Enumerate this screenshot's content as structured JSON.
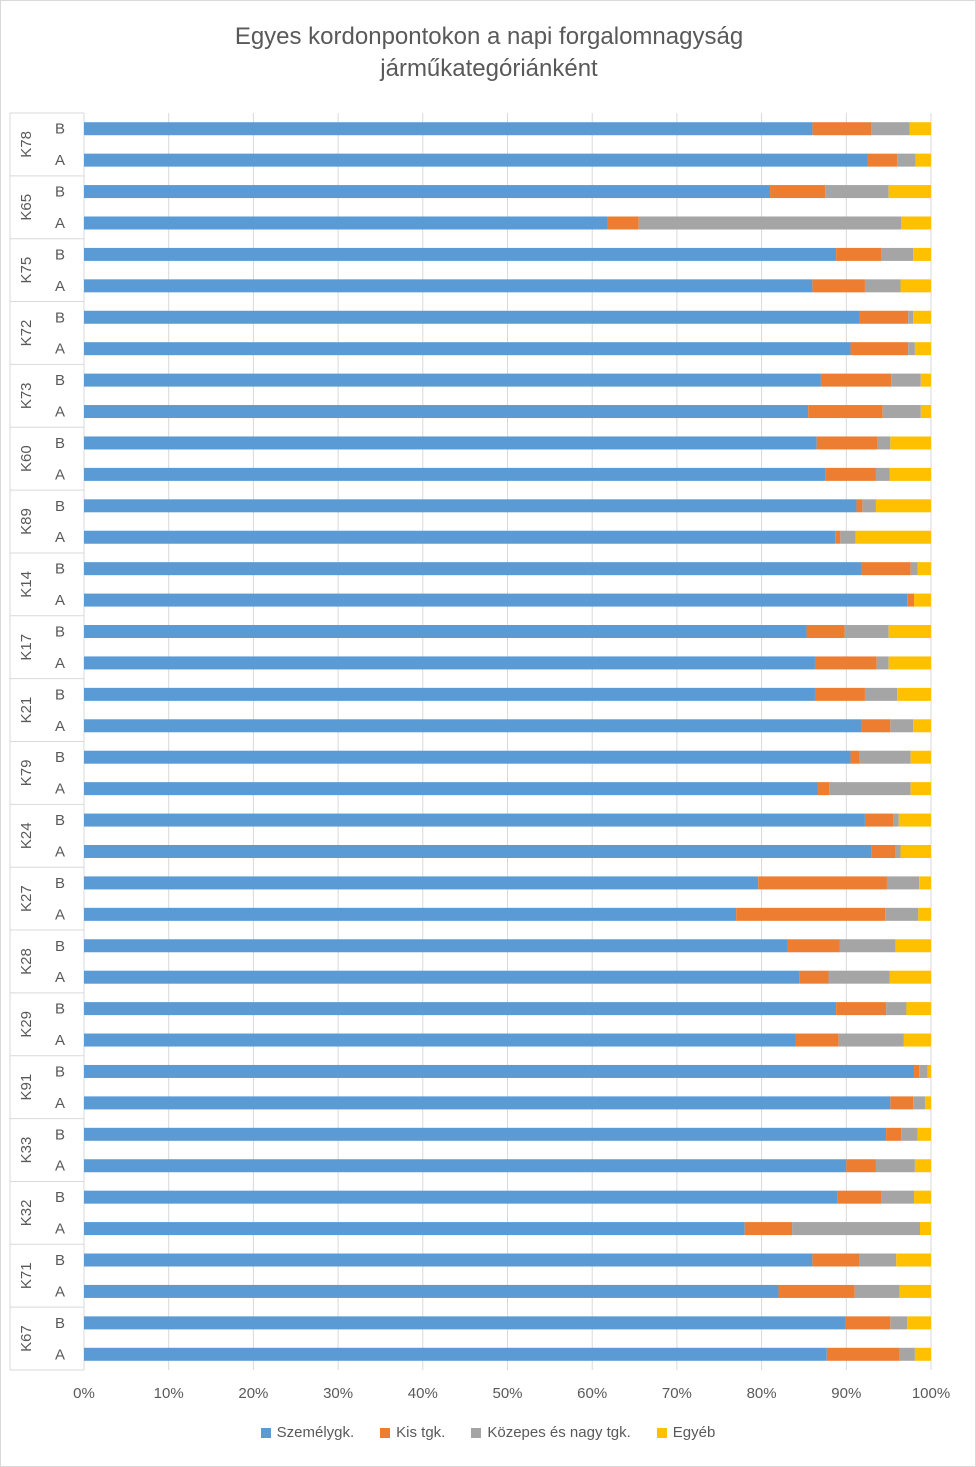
{
  "chart_data": {
    "type": "bar",
    "orientation": "horizontal",
    "stacked": "percent",
    "title": "Egyes kordonpontokon  a napi forgalomnagyság járműkategóriánként",
    "title_lines": [
      "Egyes kordonpontokon  a napi forgalomnagyság",
      "járműkategóriánként"
    ],
    "xlim": [
      0,
      100
    ],
    "x_ticks": [
      "0%",
      "10%",
      "20%",
      "30%",
      "40%",
      "50%",
      "60%",
      "70%",
      "80%",
      "90%",
      "100%"
    ],
    "grid": "vertical",
    "legend_position": "bottom",
    "colors": [
      "#5b9bd5",
      "#ed7d31",
      "#a5a5a5",
      "#ffc000"
    ],
    "series_names": [
      "Személygk.",
      "Kis tgk.",
      "Közepes és nagy tgk.",
      "Egyéb"
    ],
    "groups": [
      {
        "name": "K78",
        "bars": [
          {
            "label": "B",
            "values": [
              86.0,
              7.0,
              4.5,
              2.5
            ]
          },
          {
            "label": "A",
            "values": [
              92.5,
              3.5,
              2.2,
              1.8
            ]
          }
        ]
      },
      {
        "name": "K65",
        "bars": [
          {
            "label": "B",
            "values": [
              81.0,
              6.5,
              7.5,
              5.0
            ]
          },
          {
            "label": "A",
            "values": [
              61.8,
              3.7,
              31.0,
              3.5
            ]
          }
        ]
      },
      {
        "name": "K75",
        "bars": [
          {
            "label": "B",
            "values": [
              88.8,
              5.3,
              3.8,
              2.1
            ]
          },
          {
            "label": "A",
            "values": [
              86.0,
              6.2,
              4.2,
              3.6
            ]
          }
        ]
      },
      {
        "name": "K72",
        "bars": [
          {
            "label": "B",
            "values": [
              91.5,
              5.8,
              0.6,
              2.1
            ]
          },
          {
            "label": "A",
            "values": [
              90.5,
              6.8,
              0.8,
              1.9
            ]
          }
        ]
      },
      {
        "name": "K73",
        "bars": [
          {
            "label": "B",
            "values": [
              87.0,
              8.3,
              3.5,
              1.2
            ]
          },
          {
            "label": "A",
            "values": [
              85.5,
              8.8,
              4.5,
              1.2
            ]
          }
        ]
      },
      {
        "name": "K60",
        "bars": [
          {
            "label": "B",
            "values": [
              86.5,
              7.2,
              1.5,
              4.8
            ]
          },
          {
            "label": "A",
            "values": [
              87.5,
              6.0,
              1.6,
              4.9
            ]
          }
        ]
      },
      {
        "name": "K89",
        "bars": [
          {
            "label": "B",
            "values": [
              91.2,
              0.7,
              1.6,
              6.5
            ]
          },
          {
            "label": "A",
            "values": [
              88.7,
              0.6,
              1.8,
              8.9
            ]
          }
        ]
      },
      {
        "name": "K14",
        "bars": [
          {
            "label": "B",
            "values": [
              91.8,
              5.8,
              0.8,
              1.6
            ]
          },
          {
            "label": "A",
            "values": [
              97.2,
              0.8,
              0.0,
              2.0
            ]
          }
        ]
      },
      {
        "name": "K17",
        "bars": [
          {
            "label": "B",
            "values": [
              85.3,
              4.5,
              5.2,
              5.0
            ]
          },
          {
            "label": "A",
            "values": [
              86.3,
              7.3,
              1.4,
              5.0
            ]
          }
        ]
      },
      {
        "name": "K21",
        "bars": [
          {
            "label": "B",
            "values": [
              86.3,
              5.9,
              3.8,
              4.0
            ]
          },
          {
            "label": "A",
            "values": [
              91.8,
              3.4,
              2.7,
              2.1
            ]
          }
        ]
      },
      {
        "name": "K79",
        "bars": [
          {
            "label": "B",
            "values": [
              90.5,
              1.0,
              6.1,
              2.4
            ]
          },
          {
            "label": "A",
            "values": [
              86.6,
              1.4,
              9.6,
              2.4
            ]
          }
        ]
      },
      {
        "name": "K24",
        "bars": [
          {
            "label": "B",
            "values": [
              92.2,
              3.4,
              0.6,
              3.8
            ]
          },
          {
            "label": "A",
            "values": [
              93.0,
              2.8,
              0.6,
              3.6
            ]
          }
        ]
      },
      {
        "name": "K27",
        "bars": [
          {
            "label": "B",
            "values": [
              79.6,
              15.2,
              3.8,
              1.4
            ]
          },
          {
            "label": "A",
            "values": [
              77.0,
              17.6,
              3.9,
              1.5
            ]
          }
        ]
      },
      {
        "name": "K28",
        "bars": [
          {
            "label": "B",
            "values": [
              83.0,
              6.2,
              6.6,
              4.2
            ]
          },
          {
            "label": "A",
            "values": [
              84.5,
              3.4,
              7.2,
              4.9
            ]
          }
        ]
      },
      {
        "name": "K29",
        "bars": [
          {
            "label": "B",
            "values": [
              88.8,
              5.9,
              2.4,
              2.9
            ]
          },
          {
            "label": "A",
            "values": [
              84.0,
              5.1,
              7.7,
              3.2
            ]
          }
        ]
      },
      {
        "name": "K91",
        "bars": [
          {
            "label": "B",
            "values": [
              98.0,
              0.6,
              1.0,
              0.4
            ]
          },
          {
            "label": "A",
            "values": [
              95.2,
              2.7,
              1.4,
              0.7
            ]
          }
        ]
      },
      {
        "name": "K33",
        "bars": [
          {
            "label": "B",
            "values": [
              94.7,
              1.8,
              1.9,
              1.6
            ]
          },
          {
            "label": "A",
            "values": [
              90.0,
              3.5,
              4.6,
              1.9
            ]
          }
        ]
      },
      {
        "name": "K32",
        "bars": [
          {
            "label": "B",
            "values": [
              89.0,
              5.1,
              3.9,
              2.0
            ]
          },
          {
            "label": "A",
            "values": [
              78.0,
              5.6,
              15.1,
              1.3
            ]
          }
        ]
      },
      {
        "name": "K71",
        "bars": [
          {
            "label": "B",
            "values": [
              86.0,
              5.5,
              4.4,
              4.1
            ]
          },
          {
            "label": "A",
            "values": [
              82.0,
              9.0,
              5.3,
              3.7
            ]
          }
        ]
      },
      {
        "name": "K67",
        "bars": [
          {
            "label": "B",
            "values": [
              89.9,
              5.3,
              2.0,
              2.8
            ]
          },
          {
            "label": "A",
            "values": [
              87.7,
              8.6,
              1.8,
              1.9
            ]
          }
        ]
      }
    ]
  }
}
